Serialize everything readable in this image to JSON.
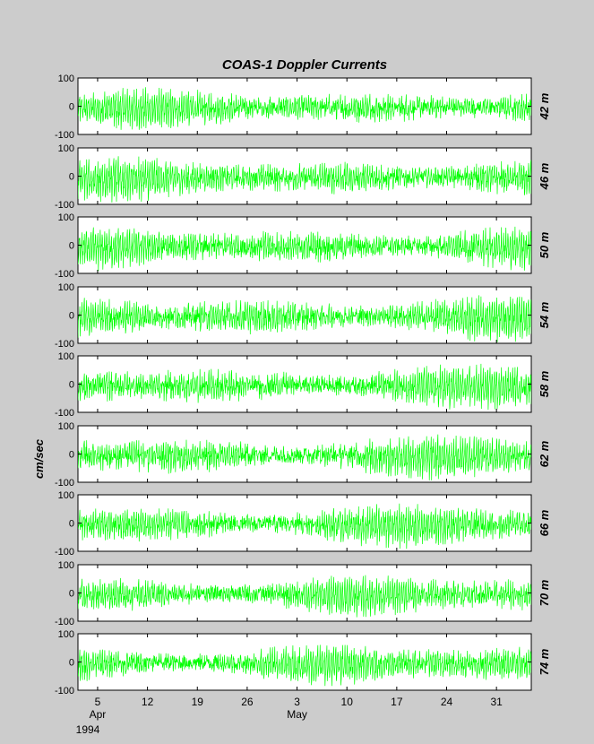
{
  "chart_data": {
    "type": "line",
    "title": "COAS-1   Doppler Currents",
    "ylabel": "cm/sec",
    "ylim": [
      -100,
      100
    ],
    "yticks": [
      "100",
      "0",
      "-100"
    ],
    "xlim_days": [
      0,
      39
    ],
    "x_ticks": [
      {
        "label": "5",
        "day": 1
      },
      {
        "label": "12",
        "day": 8
      },
      {
        "label": "19",
        "day": 15
      },
      {
        "label": "26",
        "day": 22
      },
      {
        "label": "3",
        "day": 29
      },
      {
        "label": "10",
        "day": 36
      },
      {
        "label": "17",
        "day": 43
      },
      {
        "label": "24",
        "day": 50
      },
      {
        "label": "31",
        "day": 57
      }
    ],
    "month_labels": [
      {
        "label": "Apr",
        "day": 1
      },
      {
        "label": "May",
        "day": 29
      }
    ],
    "year_label": "1994",
    "line_color": "#00ff00",
    "panel_bg": "#ffffff",
    "panels": [
      {
        "label": "42 m",
        "amplitude": 55
      },
      {
        "label": "46 m",
        "amplitude": 58
      },
      {
        "label": "50 m",
        "amplitude": 58
      },
      {
        "label": "54 m",
        "amplitude": 60
      },
      {
        "label": "58 m",
        "amplitude": 60
      },
      {
        "label": "62 m",
        "amplitude": 60
      },
      {
        "label": "66 m",
        "amplitude": 58
      },
      {
        "label": "70 m",
        "amplitude": 55
      },
      {
        "label": "74 m",
        "amplitude": 55
      }
    ]
  }
}
